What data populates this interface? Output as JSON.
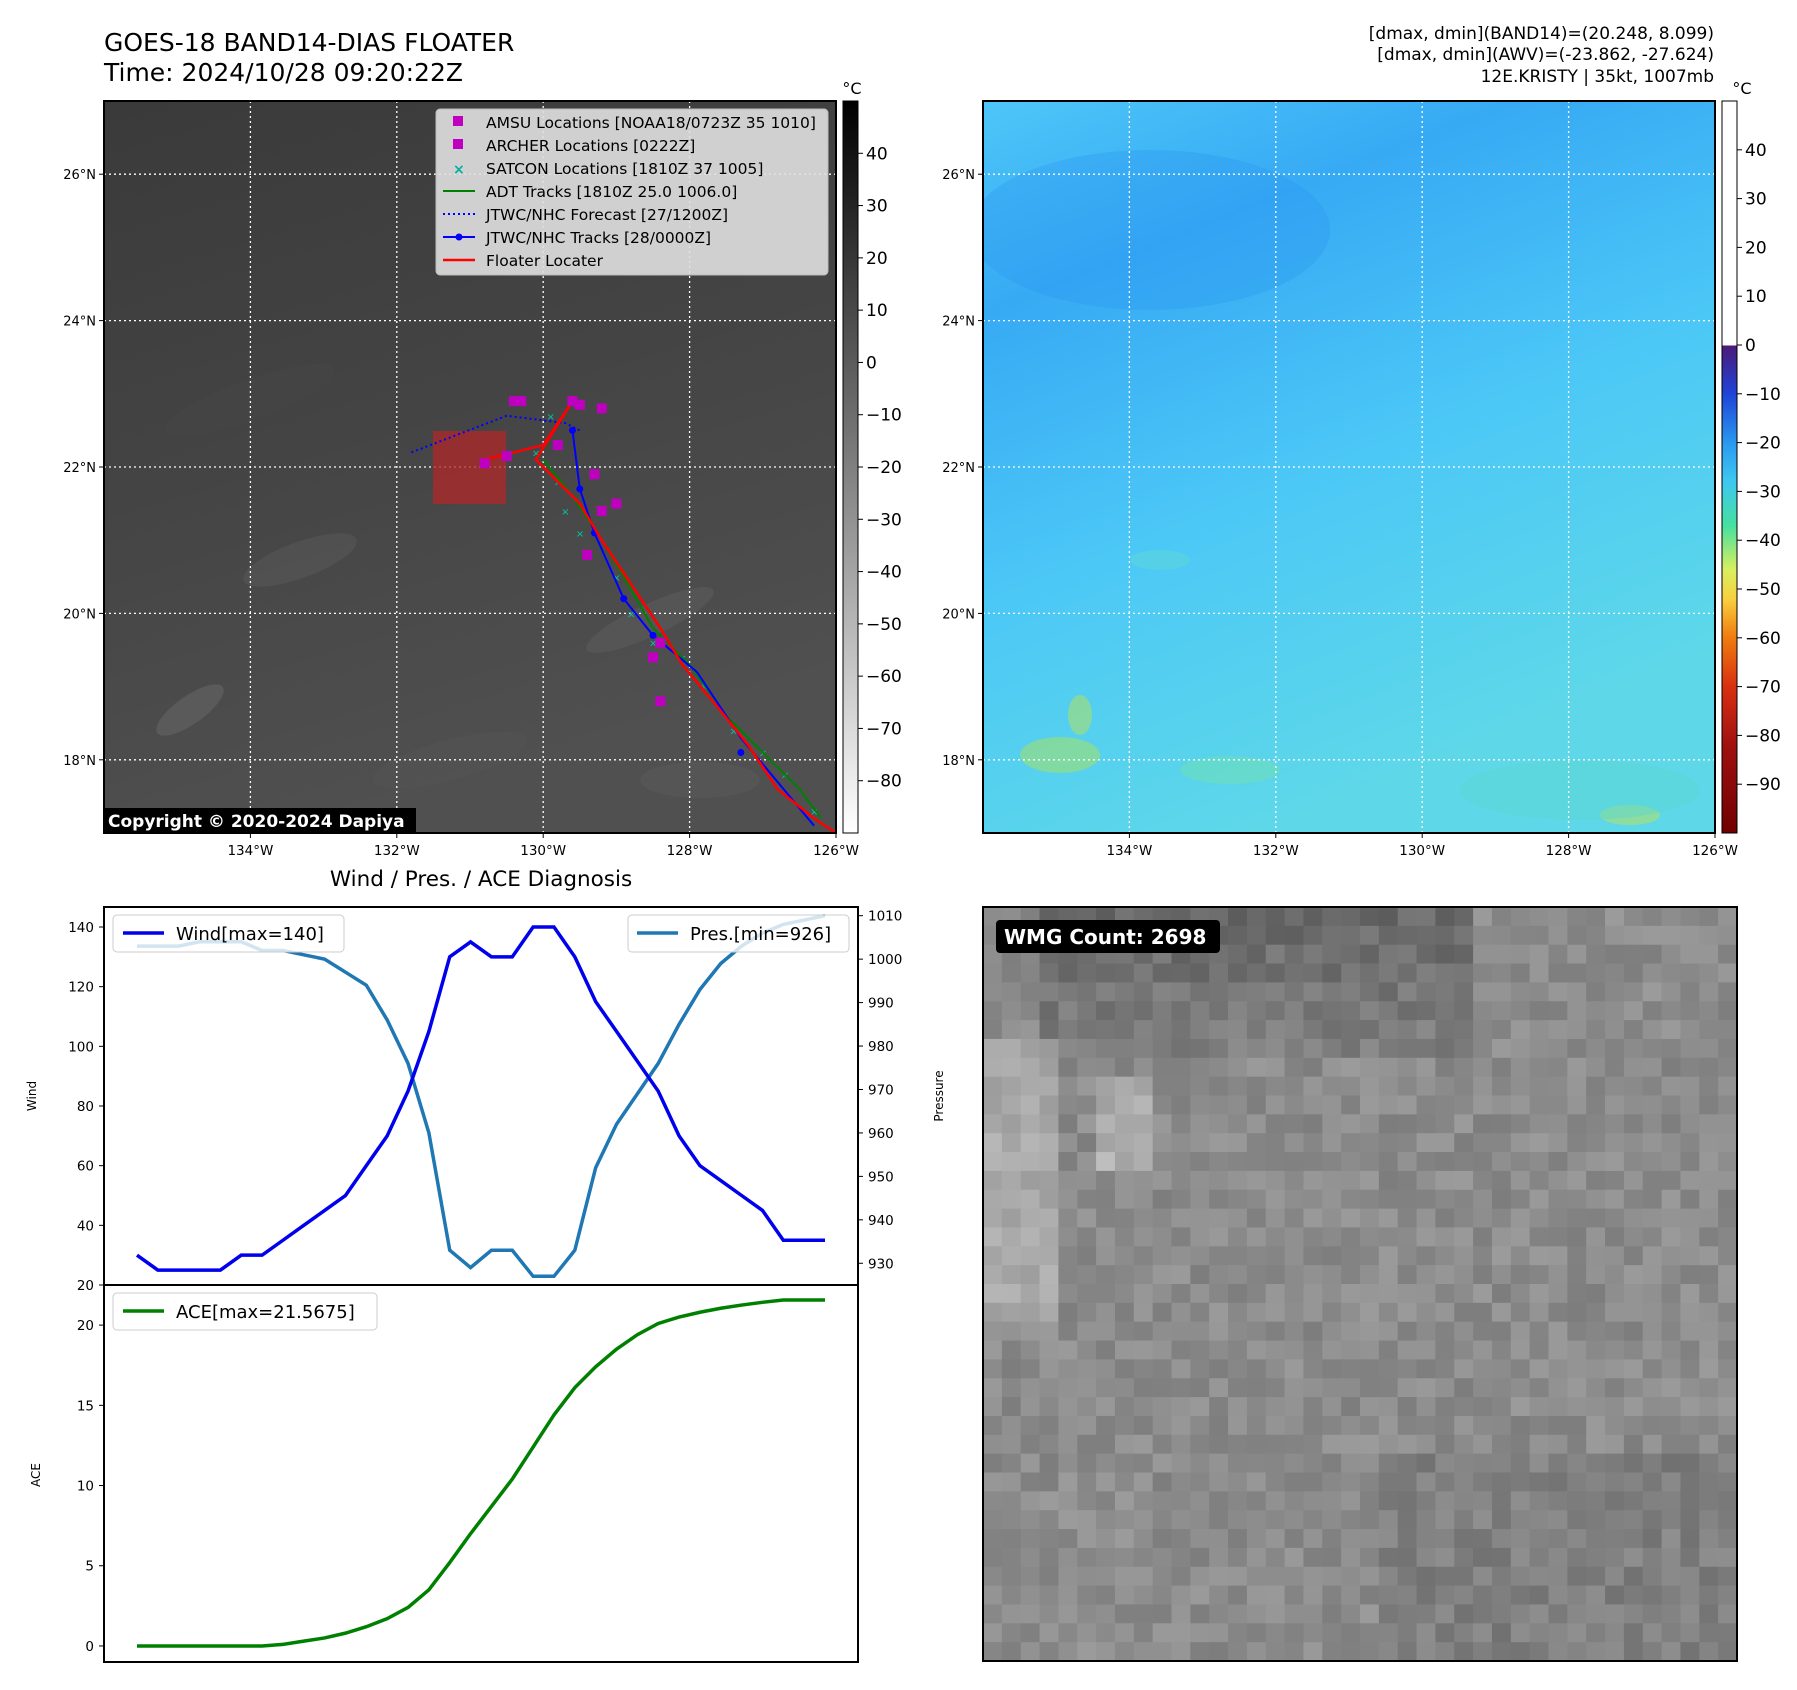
{
  "header": {
    "title_line1": "GOES-18 BAND14-DIAS FLOATER",
    "title_line2": "Time: 2024/10/28 09:20:22Z",
    "info_line1": "[dmax, dmin](BAND14)=(20.248, 8.099)",
    "info_line2": "[dmax, dmin](AWV)=(-23.862, -27.624)",
    "info_line3": "12E.KRISTY | 35kt, 1007mb"
  },
  "maps": {
    "lon_ticks": [
      "134°W",
      "132°W",
      "130°W",
      "128°W",
      "126°W"
    ],
    "lat_ticks": [
      "26°N",
      "24°N",
      "22°N",
      "20°N",
      "18°N"
    ],
    "lon_range": [
      -136,
      -126
    ],
    "lat_range": [
      17,
      27
    ],
    "copyright": "Copyright © 2020-2024 Dapiya",
    "floater_box": {
      "lon": [
        -131.5,
        -130.5
      ],
      "lat": [
        21.5,
        22.5
      ]
    }
  },
  "legend": {
    "items": [
      "AMSU Locations [NOAA18/0723Z 35 1010]",
      "ARCHER Locations [0222Z]",
      "SATCON Locations [1810Z 37 1005]",
      "ADT Tracks [1810Z 25.0 1006.0]",
      "JTWC/NHC Forecast [27/1200Z]",
      "JTWC/NHC Tracks [28/0000Z]",
      "Floater Locater"
    ],
    "colors": [
      "#c000c0",
      "#c000c0",
      "#00b0a0",
      "#008000",
      "#0000ff",
      "#0000ff",
      "#ff0000"
    ]
  },
  "colorbar_left": {
    "unit": "°C",
    "ticks": [
      "40",
      "30",
      "20",
      "10",
      "0",
      "−10",
      "−20",
      "−30",
      "−40",
      "−50",
      "−60",
      "−70",
      "−80"
    ]
  },
  "colorbar_right": {
    "unit": "°C",
    "ticks": [
      "40",
      "30",
      "20",
      "10",
      "0",
      "−10",
      "−20",
      "−30",
      "−40",
      "−50",
      "−60",
      "−70",
      "−80",
      "−90"
    ]
  },
  "diagnosis": {
    "title": "Wind / Pres. / ACE Diagnosis",
    "wind_label": "Wind",
    "pressure_label": "Pressure",
    "ace_label": "ACE",
    "wind_legend": "Wind[max=140]",
    "pres_legend": "Pres.[min=926]",
    "ace_legend": "ACE[max=21.5675]",
    "wind_ticks": [
      "20",
      "40",
      "60",
      "80",
      "100",
      "120",
      "140"
    ],
    "pres_ticks": [
      "930",
      "940",
      "950",
      "960",
      "970",
      "980",
      "990",
      "1000",
      "1010"
    ],
    "ace_ticks": [
      "0",
      "5",
      "10",
      "15",
      "20"
    ]
  },
  "wmg": {
    "label": "WMG Count: 2698"
  },
  "chart_data": [
    {
      "type": "line",
      "title": "Wind / Pres. / ACE Diagnosis",
      "x": [
        0,
        1,
        2,
        3,
        4,
        5,
        6,
        7,
        8,
        9,
        10,
        11,
        12,
        13,
        14,
        15,
        16,
        17,
        18,
        19,
        20,
        21,
        22,
        23,
        24,
        25,
        26,
        27,
        28,
        29,
        30,
        31,
        32,
        33
      ],
      "series": [
        {
          "name": "Wind[max=140]",
          "axis": "Wind",
          "color": "#0000ee",
          "values": [
            30,
            25,
            25,
            25,
            25,
            30,
            30,
            35,
            40,
            45,
            50,
            60,
            70,
            85,
            105,
            130,
            135,
            130,
            130,
            140,
            140,
            130,
            115,
            105,
            95,
            85,
            70,
            60,
            55,
            50,
            45,
            35,
            35,
            35
          ]
        },
        {
          "name": "Pres.[min=926]",
          "axis": "Pressure",
          "color": "#1f77b4",
          "values": [
            1003,
            1003,
            1003,
            1004,
            1004,
            1004,
            1002,
            1002,
            1001,
            1000,
            997,
            994,
            986,
            976,
            960,
            933,
            929,
            933,
            933,
            927,
            927,
            933,
            952,
            962,
            969,
            976,
            985,
            993,
            999,
            1003,
            1006,
            1008,
            1009,
            1010
          ]
        }
      ],
      "ylim_wind": [
        20,
        140
      ],
      "ylim_pressure": [
        925,
        1012
      ]
    },
    {
      "type": "line",
      "title": "",
      "x": [
        0,
        1,
        2,
        3,
        4,
        5,
        6,
        7,
        8,
        9,
        10,
        11,
        12,
        13,
        14,
        15,
        16,
        17,
        18,
        19,
        20,
        21,
        22,
        23,
        24,
        25,
        26,
        27,
        28,
        29,
        30,
        31,
        32,
        33
      ],
      "series": [
        {
          "name": "ACE[max=21.5675]",
          "axis": "ACE",
          "color": "#008000",
          "values": [
            0,
            0,
            0,
            0,
            0,
            0,
            0,
            0.1,
            0.3,
            0.5,
            0.8,
            1.2,
            1.7,
            2.4,
            3.5,
            5.2,
            7.0,
            8.7,
            10.4,
            12.4,
            14.4,
            16.1,
            17.4,
            18.5,
            19.4,
            20.1,
            20.5,
            20.8,
            21.05,
            21.25,
            21.42,
            21.5675,
            21.5675,
            21.5675
          ]
        }
      ],
      "ylim": [
        -1,
        22.5
      ]
    }
  ]
}
